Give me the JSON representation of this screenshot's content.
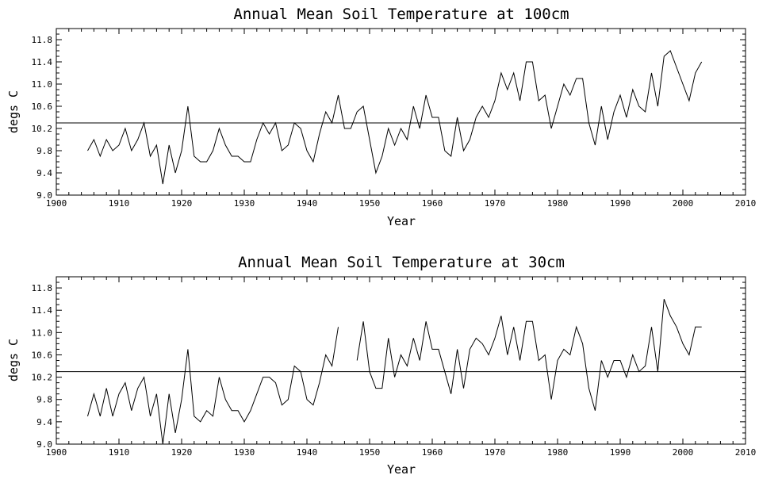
{
  "chart_data": [
    {
      "type": "line",
      "title": "Annual Mean Soil Temperature at 100cm",
      "xlabel": "Year",
      "ylabel": "degs C",
      "xlim": [
        1900,
        2010
      ],
      "ylim": [
        9.0,
        12.0
      ],
      "xticks": [
        1900,
        1910,
        1920,
        1930,
        1940,
        1950,
        1960,
        1970,
        1980,
        1990,
        2000,
        2010
      ],
      "yticks": [
        "9.0",
        "9.4",
        "9.8",
        "10.2",
        "10.6",
        "11.0",
        "11.4",
        "11.8"
      ],
      "reference_line": 10.3,
      "grid": false,
      "series": [
        {
          "x": [
            1905,
            1906,
            1907,
            1908,
            1909,
            1910,
            1911,
            1912,
            1913,
            1914,
            1915,
            1916,
            1917,
            1918,
            1919,
            1920,
            1921,
            1922,
            1923,
            1924,
            1925,
            1926,
            1927,
            1928,
            1929,
            1930,
            1931,
            1932,
            1933,
            1934,
            1935,
            1936,
            1937,
            1938,
            1939,
            1940,
            1941,
            1942,
            1943,
            1944,
            1945,
            1946,
            1947,
            1948,
            1949,
            1950,
            1951,
            1952,
            1953,
            1954,
            1955,
            1956,
            1957,
            1958,
            1959,
            1960,
            1961,
            1962,
            1963,
            1964,
            1965,
            1966,
            1967,
            1968,
            1969,
            1970,
            1971,
            1972,
            1973,
            1974,
            1975,
            1976,
            1977,
            1978,
            1979,
            1980,
            1981,
            1982,
            1983,
            1984,
            1985,
            1986,
            1987,
            1988,
            1989,
            1990,
            1991,
            1992,
            1993,
            1994,
            1995,
            1996,
            1997,
            1998,
            1999,
            2000,
            2001,
            2002,
            2003
          ],
          "values": [
            9.8,
            10.0,
            9.7,
            10.0,
            9.8,
            9.9,
            10.2,
            9.8,
            10.0,
            10.3,
            9.7,
            9.9,
            9.2,
            9.9,
            9.4,
            9.8,
            10.6,
            9.7,
            9.6,
            9.6,
            9.8,
            10.2,
            9.9,
            9.7,
            9.7,
            9.6,
            9.6,
            10.0,
            10.3,
            10.1,
            10.3,
            9.8,
            9.9,
            10.3,
            10.2,
            9.8,
            9.6,
            10.1,
            10.5,
            10.3,
            10.8,
            10.2,
            10.2,
            10.5,
            10.6,
            10.0,
            9.4,
            9.7,
            10.2,
            9.9,
            10.2,
            10.0,
            10.6,
            10.2,
            10.8,
            10.4,
            10.4,
            9.8,
            9.7,
            10.4,
            9.8,
            10.0,
            10.4,
            10.6,
            10.4,
            10.7,
            11.2,
            10.9,
            11.2,
            10.7,
            11.4,
            11.4,
            10.7,
            10.8,
            10.2,
            10.6,
            11.0,
            10.8,
            11.1,
            11.1,
            10.3,
            9.9,
            10.6,
            10.0,
            10.5,
            10.8,
            10.4,
            10.9,
            10.6,
            10.5,
            11.2,
            10.6,
            11.5,
            11.6,
            11.3,
            11.0,
            10.7,
            11.2,
            11.4
          ]
        }
      ]
    },
    {
      "type": "line",
      "title": "Annual Mean Soil Temperature at 30cm",
      "xlabel": "Year",
      "ylabel": "degs C",
      "xlim": [
        1900,
        2010
      ],
      "ylim": [
        9.0,
        12.0
      ],
      "xticks": [
        1900,
        1910,
        1920,
        1930,
        1940,
        1950,
        1960,
        1970,
        1980,
        1990,
        2000,
        2010
      ],
      "yticks": [
        "9.0",
        "9.4",
        "9.8",
        "10.2",
        "10.6",
        "11.0",
        "11.4",
        "11.8"
      ],
      "reference_line": 10.3,
      "grid": false,
      "series": [
        {
          "x": [
            1905,
            1906,
            1907,
            1908,
            1909,
            1910,
            1911,
            1912,
            1913,
            1914,
            1915,
            1916,
            1917,
            1918,
            1919,
            1920,
            1921,
            1922,
            1923,
            1924,
            1925,
            1926,
            1927,
            1928,
            1929,
            1930,
            1931,
            1932,
            1933,
            1934,
            1935,
            1936,
            1937,
            1938,
            1939,
            1940,
            1941,
            1942,
            1943,
            1944,
            1945,
            1946,
            1947,
            1948,
            1949,
            1950,
            1951,
            1952,
            1953,
            1954,
            1955,
            1956,
            1957,
            1958,
            1959,
            1960,
            1961,
            1962,
            1963,
            1964,
            1965,
            1966,
            1967,
            1968,
            1969,
            1970,
            1971,
            1972,
            1973,
            1974,
            1975,
            1976,
            1977,
            1978,
            1979,
            1980,
            1981,
            1982,
            1983,
            1984,
            1985,
            1986,
            1987,
            1988,
            1989,
            1990,
            1991,
            1992,
            1993,
            1994,
            1995,
            1996,
            1997,
            1998,
            1999,
            2000,
            2001,
            2002,
            2003
          ],
          "values": [
            9.5,
            9.9,
            9.5,
            10.0,
            9.5,
            9.9,
            10.1,
            9.6,
            10.0,
            10.2,
            9.5,
            9.9,
            9.0,
            9.9,
            9.2,
            9.8,
            10.7,
            9.5,
            9.4,
            9.6,
            9.5,
            10.2,
            9.8,
            9.6,
            9.6,
            9.4,
            9.6,
            9.9,
            10.2,
            10.2,
            10.1,
            9.7,
            9.8,
            10.4,
            10.3,
            9.8,
            9.7,
            10.1,
            10.6,
            10.4,
            11.1,
            null,
            null,
            10.5,
            11.2,
            10.3,
            10.0,
            10.0,
            10.9,
            10.2,
            10.6,
            10.4,
            10.9,
            10.5,
            11.2,
            10.7,
            10.7,
            10.3,
            9.9,
            10.7,
            10.0,
            10.7,
            10.9,
            10.8,
            10.6,
            10.9,
            11.3,
            10.6,
            11.1,
            10.5,
            11.2,
            11.2,
            10.5,
            10.6,
            9.8,
            10.5,
            10.7,
            10.6,
            11.1,
            10.8,
            10.0,
            9.6,
            10.5,
            10.2,
            10.5,
            10.5,
            10.2,
            10.6,
            10.3,
            10.4,
            11.1,
            10.3,
            11.6,
            11.3,
            11.1,
            10.8,
            10.6,
            11.1,
            11.1
          ]
        }
      ]
    }
  ]
}
